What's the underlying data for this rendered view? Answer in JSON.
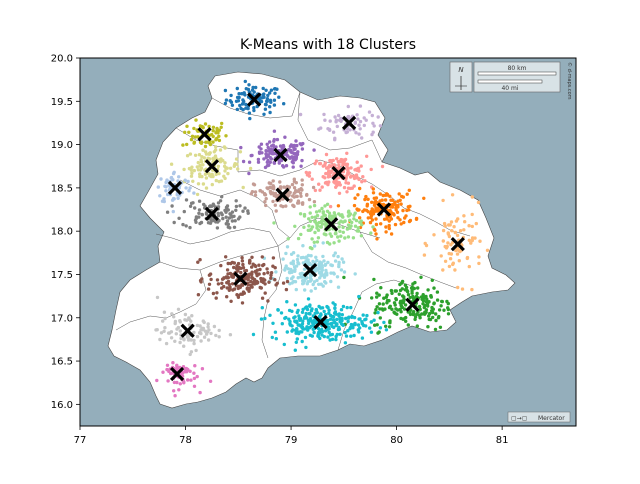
{
  "chart_data": {
    "type": "scatter",
    "title": "K-Means with 18 Clusters",
    "xlabel": "",
    "ylabel": "",
    "xlim": [
      77.0,
      81.7
    ],
    "ylim": [
      15.75,
      20.0
    ],
    "xticks": [
      77,
      78,
      79,
      80,
      81
    ],
    "yticks": [
      16.0,
      16.5,
      17.0,
      17.5,
      18.0,
      18.5,
      19.0,
      19.5,
      20.0
    ],
    "grid": false,
    "legend": "none",
    "background_color": "#94aebb",
    "land_color": "#ffffff",
    "basemap": {
      "scale_bar_km": "80 km",
      "scale_bar_mi": "40 mi",
      "north_label": "N",
      "projection_label": "Mercator",
      "credit": "© d-maps.com"
    },
    "clusters": [
      {
        "centroid": [
          78.65,
          19.52
        ],
        "spread": [
          0.22,
          0.14
        ],
        "count": 90,
        "color": "#1f77b4"
      },
      {
        "centroid": [
          78.18,
          19.12
        ],
        "spread": [
          0.18,
          0.14
        ],
        "count": 60,
        "color": "#bcbd22"
      },
      {
        "centroid": [
          79.55,
          19.25
        ],
        "spread": [
          0.22,
          0.14
        ],
        "count": 70,
        "color": "#c5b0d5"
      },
      {
        "centroid": [
          78.25,
          18.75
        ],
        "spread": [
          0.22,
          0.16
        ],
        "count": 110,
        "color": "#dbdb8d"
      },
      {
        "centroid": [
          78.9,
          18.88
        ],
        "spread": [
          0.22,
          0.14
        ],
        "count": 140,
        "color": "#9467bd"
      },
      {
        "centroid": [
          79.45,
          18.67
        ],
        "spread": [
          0.22,
          0.16
        ],
        "count": 150,
        "color": "#ff9896"
      },
      {
        "centroid": [
          77.9,
          18.5
        ],
        "spread": [
          0.14,
          0.16
        ],
        "count": 60,
        "color": "#aec7e8"
      },
      {
        "centroid": [
          78.25,
          18.2
        ],
        "spread": [
          0.24,
          0.14
        ],
        "count": 110,
        "color": "#7f7f7f"
      },
      {
        "centroid": [
          78.92,
          18.42
        ],
        "spread": [
          0.22,
          0.14
        ],
        "count": 110,
        "color": "#c49c94"
      },
      {
        "centroid": [
          79.88,
          18.25
        ],
        "spread": [
          0.24,
          0.18
        ],
        "count": 150,
        "color": "#ff7f0e"
      },
      {
        "centroid": [
          79.38,
          18.08
        ],
        "spread": [
          0.24,
          0.16
        ],
        "count": 150,
        "color": "#98df8a"
      },
      {
        "centroid": [
          80.58,
          17.85
        ],
        "spread": [
          0.2,
          0.35
        ],
        "count": 80,
        "color": "#ffbb78"
      },
      {
        "centroid": [
          79.18,
          17.55
        ],
        "spread": [
          0.24,
          0.18
        ],
        "count": 170,
        "color": "#9edae5"
      },
      {
        "centroid": [
          78.52,
          17.45
        ],
        "spread": [
          0.26,
          0.2
        ],
        "count": 180,
        "color": "#8c564b"
      },
      {
        "centroid": [
          80.15,
          17.15
        ],
        "spread": [
          0.32,
          0.25
        ],
        "count": 190,
        "color": "#2ca02c"
      },
      {
        "centroid": [
          79.28,
          16.95
        ],
        "spread": [
          0.38,
          0.18
        ],
        "count": 260,
        "color": "#17becf"
      },
      {
        "centroid": [
          78.02,
          16.85
        ],
        "spread": [
          0.24,
          0.18
        ],
        "count": 90,
        "color": "#c7c7c7"
      },
      {
        "centroid": [
          77.92,
          16.35
        ],
        "spread": [
          0.16,
          0.14
        ],
        "count": 60,
        "color": "#e377c2"
      }
    ]
  }
}
